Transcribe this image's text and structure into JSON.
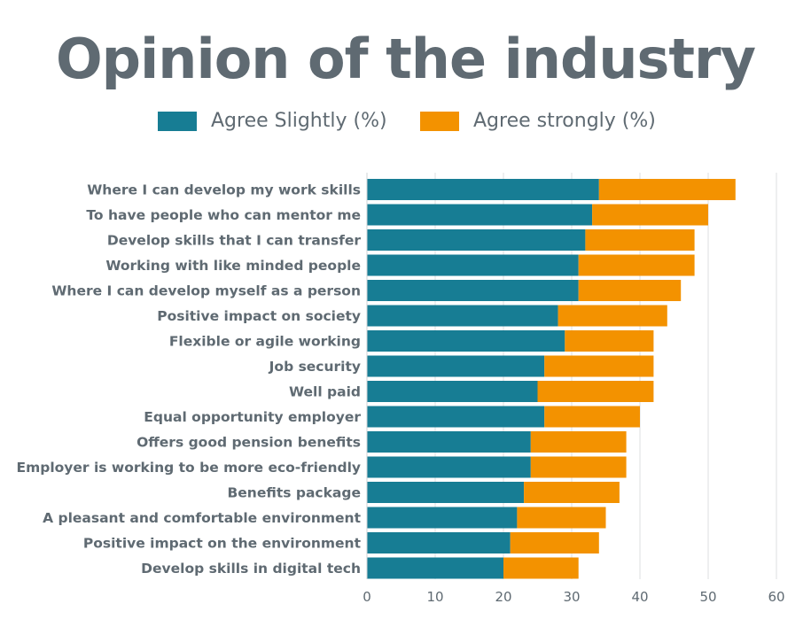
{
  "chart_data": {
    "type": "bar",
    "orientation": "horizontal",
    "stacked": true,
    "title": "Opinion of the industry",
    "categories": [
      "Where I can develop my work skills",
      "To have people who can mentor me",
      "Develop skills that I can transfer",
      "Working with like minded people",
      "Where I can develop myself as a person",
      "Positive impact on society",
      "Flexible or agile working",
      "Job security",
      "Well paid",
      "Equal opportunity employer",
      "Offers good pension benefits",
      "Employer is working to be more eco-friendly",
      "Benefits package",
      "A pleasant and comfortable environment",
      "Positive impact on the environment",
      "Develop skills in digital tech"
    ],
    "series": [
      {
        "name": "Agree Slightly (%)",
        "color": "#177d94",
        "values": [
          34,
          33,
          32,
          31,
          31,
          28,
          29,
          26,
          25,
          26,
          24,
          24,
          23,
          22,
          21,
          20
        ]
      },
      {
        "name": "Agree strongly (%)",
        "color": "#f39200",
        "values": [
          20,
          17,
          16,
          17,
          15,
          16,
          13,
          16,
          17,
          14,
          14,
          14,
          14,
          13,
          13,
          11
        ]
      }
    ],
    "xlim": [
      0,
      60
    ],
    "xticks": [
      0,
      10,
      20,
      30,
      40,
      50,
      60
    ],
    "grid": true,
    "legend": "top"
  }
}
